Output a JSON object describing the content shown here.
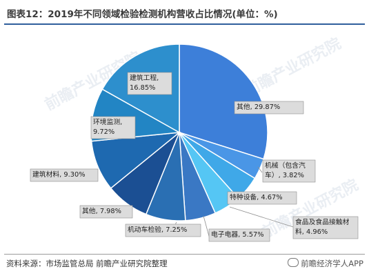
{
  "title": "图表12：2019年不同领域检验检测机构营收占比情况(单位：%)",
  "source": "资料来源：市场监管总局 前瞻产业研究院整理",
  "brand": "前瞻经济学人APP",
  "watermark": "前瞻产业研究院",
  "colors": {
    "slices": [
      "#3d7fd9",
      "#4a96e6",
      "#3fa8e8",
      "#55c6f4",
      "#3a78c4",
      "#2a6fb3",
      "#1b4f93",
      "#1e69b0",
      "#2285c4",
      "#2d8fcd"
    ],
    "label_bg": "#dcdcdc",
    "label_border": "#8e8e8e",
    "rule": "#2f5e9c"
  },
  "chart_data": {
    "type": "pie",
    "start_angle_deg": 0,
    "slices": [
      {
        "name": "其他",
        "value": 29.87,
        "label": "其他, 29.87%",
        "inside": true
      },
      {
        "name": "机械（包含汽车）",
        "value": 3.82,
        "label": [
          "机械（包含汽",
          "车）, 3.82%"
        ],
        "inside": false
      },
      {
        "name": "特种设备",
        "value": 4.67,
        "label": "特种设备, 4.67%",
        "inside": false
      },
      {
        "name": "食品及食品接触材料",
        "value": 4.96,
        "label": [
          "食品及食品接触材",
          "料, 4.96%"
        ],
        "inside": false
      },
      {
        "name": "电子电器",
        "value": 5.57,
        "label": "电子电器, 5.57%",
        "inside": false
      },
      {
        "name": "机动车检验",
        "value": 7.25,
        "label": "机动车检验, 7.25%",
        "inside": false
      },
      {
        "name": "其他",
        "value": 7.98,
        "label": "其他, 7.98%",
        "inside": false
      },
      {
        "name": "建筑材料",
        "value": 9.3,
        "label": "建筑材料, 9.30%",
        "inside": false
      },
      {
        "name": "环境监测",
        "value": 9.72,
        "label": [
          "环境监测,",
          "9.72%"
        ],
        "inside": true
      },
      {
        "name": "建筑工程",
        "value": 16.85,
        "label": [
          "建筑工程,",
          "16.85%"
        ],
        "inside": true
      }
    ]
  }
}
